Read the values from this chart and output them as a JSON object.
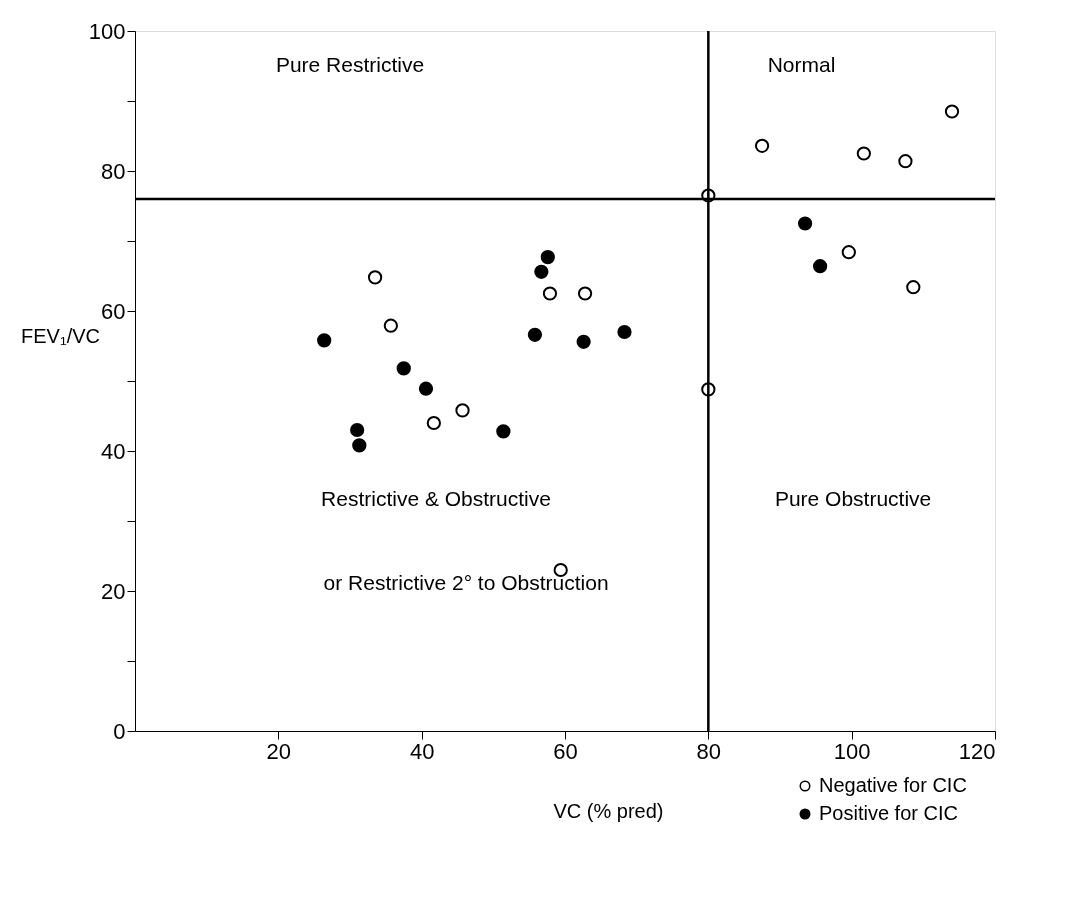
{
  "chart_data": {
    "type": "scatter",
    "xlabel": "VC (% pred)",
    "ylabel": "FEV₁/VC",
    "xlim": [
      0,
      120
    ],
    "xticks": [
      20,
      40,
      60,
      80,
      100,
      120
    ],
    "ylim": [
      0,
      100
    ],
    "yticks": [
      0,
      {
        "value": 10,
        "label": null
      },
      20,
      {
        "value": 30,
        "label": null
      },
      40,
      {
        "value": 50,
        "label": null
      },
      60,
      {
        "value": 70,
        "label": null
      },
      80,
      {
        "value": 90,
        "label": null
      },
      100
    ],
    "marker": "circle",
    "grid": false,
    "legend": "bottom right",
    "series": [
      {
        "name": "Negative for CIC",
        "color": "#ffffff",
        "x": [
          33.5,
          35.7,
          41.7,
          45.7,
          57.9,
          62.8,
          80,
          59.4,
          80,
          87.5,
          101.7,
          107.5,
          114,
          99.6,
          108.6
        ],
        "values": [
          64.8,
          57.9,
          44,
          45.8,
          62.5,
          62.5,
          48.8,
          23,
          76.5,
          83.6,
          82.5,
          81.4,
          88.5,
          68.4,
          63.4
        ]
      },
      {
        "name": "Positive for CIC",
        "color": "#000000",
        "x": [
          26.4,
          31,
          31.3,
          37.5,
          40.6,
          51.4,
          55.8,
          56.7,
          57.6,
          62.6,
          68.3,
          93.5,
          95.6
        ],
        "values": [
          55.8,
          43,
          40.8,
          51.8,
          48.9,
          42.8,
          56.6,
          65.6,
          67.7,
          55.6,
          57,
          72.5,
          66.4
        ]
      }
    ],
    "ref_lines": [
      {
        "axis": "x",
        "value": 80,
        "label": null
      },
      {
        "axis": "y",
        "value": 76,
        "label": null
      }
    ],
    "annotations": [
      "Pure Restrictive",
      "Normal",
      "Restrictive & Obstructive",
      "or Restrictive 2° to Obstruction",
      "Pure Obstructive"
    ]
  }
}
